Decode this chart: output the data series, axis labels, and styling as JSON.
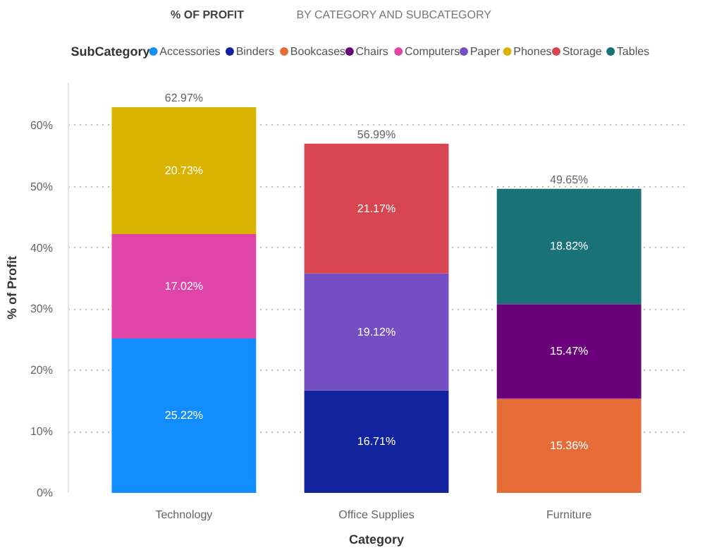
{
  "chart_data": {
    "type": "bar",
    "title": "% OF PROFIT",
    "subtitle": "BY CATEGORY AND SUBCATEGORY",
    "xlabel": "Category",
    "ylabel": "% of Profit",
    "legend_title": "SubCategory",
    "categories": [
      "Technology",
      "Office Supplies",
      "Furniture"
    ],
    "stacked": true,
    "series": [
      {
        "name": "Accessories",
        "color": "#118dff",
        "values": [
          25.22,
          null,
          null
        ],
        "value_labels": [
          "25.22%",
          null,
          null
        ]
      },
      {
        "name": "Binders",
        "color": "#12239e",
        "values": [
          null,
          16.71,
          null
        ],
        "value_labels": [
          null,
          "16.71%",
          null
        ]
      },
      {
        "name": "Bookcases",
        "color": "#e66c37",
        "values": [
          null,
          null,
          15.36
        ],
        "value_labels": [
          null,
          null,
          "15.36%"
        ]
      },
      {
        "name": "Chairs",
        "color": "#6b007b",
        "values": [
          null,
          null,
          15.47
        ],
        "value_labels": [
          null,
          null,
          "15.47%"
        ]
      },
      {
        "name": "Computers",
        "color": "#e044a7",
        "values": [
          17.02,
          null,
          null
        ],
        "value_labels": [
          "17.02%",
          null,
          null
        ]
      },
      {
        "name": "Paper",
        "color": "#744ec2",
        "values": [
          null,
          19.12,
          null
        ],
        "value_labels": [
          null,
          "19.12%",
          null
        ]
      },
      {
        "name": "Phones",
        "color": "#d9b300",
        "values": [
          20.73,
          null,
          null
        ],
        "value_labels": [
          "20.73%",
          null,
          null
        ]
      },
      {
        "name": "Storage",
        "color": "#d64550",
        "values": [
          null,
          21.17,
          null
        ],
        "value_labels": [
          null,
          "21.17%",
          null
        ]
      },
      {
        "name": "Tables",
        "color": "#197278",
        "values": [
          null,
          null,
          18.82
        ],
        "value_labels": [
          null,
          null,
          "18.82%"
        ]
      }
    ],
    "totals": [
      "62.97%",
      "56.99%",
      "49.65%"
    ],
    "ylim": [
      0,
      67
    ],
    "yticks": [
      {
        "value": 0,
        "label": "0%"
      },
      {
        "value": 10,
        "label": "10%"
      },
      {
        "value": 20,
        "label": "20%"
      },
      {
        "value": 30,
        "label": "30%"
      },
      {
        "value": 40,
        "label": "40%"
      },
      {
        "value": 50,
        "label": "50%"
      },
      {
        "value": 60,
        "label": "60%"
      }
    ],
    "grid": "y",
    "legend": "top"
  }
}
